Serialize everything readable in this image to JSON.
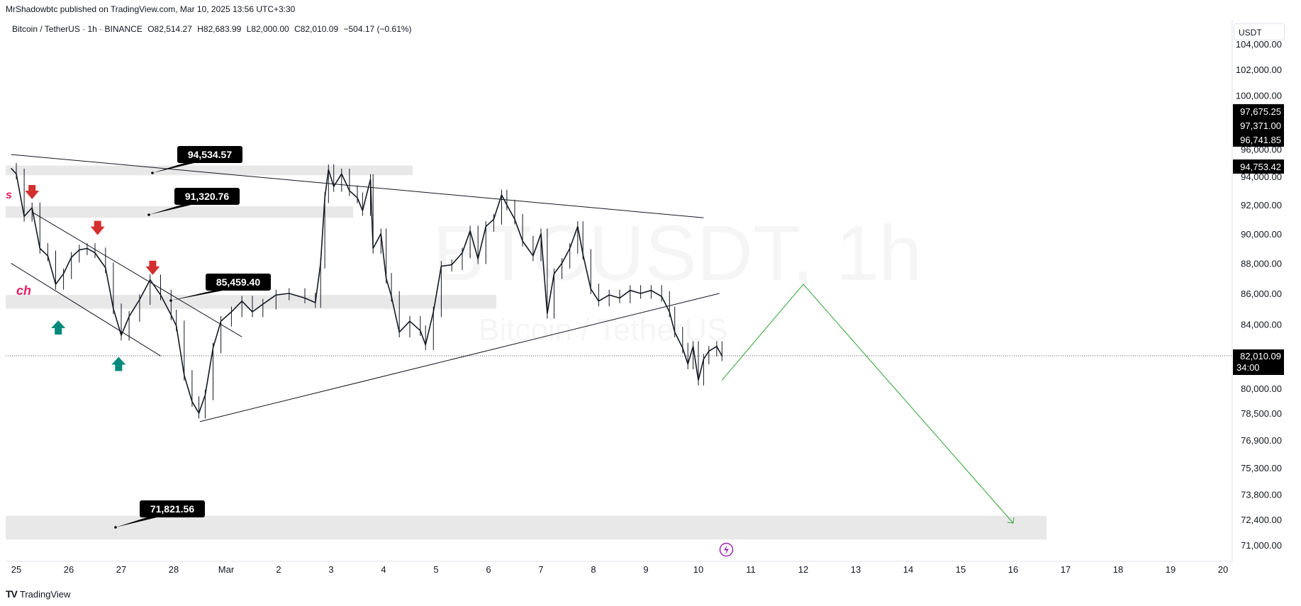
{
  "header": {
    "published_by": "MrShadowbtc published on TradingView.com, Mar 10, 2025 13:56 UTC+3:30"
  },
  "symbol": {
    "name": "Bitcoin / TetherUS · 1h · BINANCE",
    "open": "O82,514.27",
    "high": "H82,683.99",
    "low": "L82,000.00",
    "close": "C82,010.09",
    "change": "−504.17 (−0.61%)"
  },
  "watermark": {
    "main": "BTCUSDT, 1h",
    "sub": "Bitcoin / TetherUS"
  },
  "axis": {
    "currency": "USDT"
  },
  "footer": {
    "logo_mark": "TV",
    "logo_text": "TradingView"
  },
  "chart_data": {
    "type": "line",
    "price_axis": {
      "tick_labels": [
        "104,000.00",
        "102,000.00",
        "100,000.00",
        "96,000.00",
        "94,000.00",
        "92,000.00",
        "90,000.00",
        "88,000.00",
        "86,000.00",
        "84,000.00",
        "80,000.00",
        "78,500.00",
        "76,900.00",
        "75,300.00",
        "73,800.00",
        "72,400.00",
        "71,000.00"
      ],
      "scale": "log"
    },
    "time_axis": {
      "tick_labels": [
        "25",
        "26",
        "27",
        "28",
        "Mar",
        "2",
        "3",
        "4",
        "5",
        "6",
        "7",
        "8",
        "9",
        "10",
        "11",
        "12",
        "13",
        "14",
        "15",
        "16",
        "17",
        "18",
        "19",
        "20"
      ]
    },
    "price_badges": [
      {
        "label": "97,675.25",
        "value": 97675.25
      },
      {
        "label": "97,371.00",
        "value": 97371.0
      },
      {
        "label": "96,741.85",
        "value": 96741.85
      },
      {
        "label": "94,753.42",
        "value": 94753.42
      }
    ],
    "current_price": {
      "label": "82,010.09",
      "countdown": "34:00",
      "value": 82010.09
    },
    "callouts": [
      {
        "label": "94,534.57",
        "value": 94534.57
      },
      {
        "label": "91,320.76",
        "value": 91320.76
      },
      {
        "label": "85,459.40",
        "value": 85459.4
      },
      {
        "label": "71,821.56",
        "value": 71821.56
      }
    ],
    "zones": [
      {
        "from": 94100,
        "to": 94800
      },
      {
        "from": 91100,
        "to": 91900
      },
      {
        "from": 85000,
        "to": 85900
      },
      {
        "from": 71300,
        "to": 72600
      }
    ],
    "price_series": [
      {
        "day": 24.9,
        "price": 94600
      },
      {
        "day": 25.0,
        "price": 94200
      },
      {
        "day": 25.15,
        "price": 91200
      },
      {
        "day": 25.3,
        "price": 91800
      },
      {
        "day": 25.45,
        "price": 89000
      },
      {
        "day": 25.6,
        "price": 88500
      },
      {
        "day": 25.75,
        "price": 86600
      },
      {
        "day": 25.9,
        "price": 87300
      },
      {
        "day": 26.05,
        "price": 88400
      },
      {
        "day": 26.2,
        "price": 88900
      },
      {
        "day": 26.35,
        "price": 89000
      },
      {
        "day": 26.5,
        "price": 88700
      },
      {
        "day": 26.7,
        "price": 87700
      },
      {
        "day": 26.85,
        "price": 85000
      },
      {
        "day": 27.0,
        "price": 83300
      },
      {
        "day": 27.15,
        "price": 84500
      },
      {
        "day": 27.35,
        "price": 85600
      },
      {
        "day": 27.55,
        "price": 86900
      },
      {
        "day": 27.75,
        "price": 85900
      },
      {
        "day": 27.95,
        "price": 84600
      },
      {
        "day": 28.05,
        "price": 83900
      },
      {
        "day": 28.2,
        "price": 80800
      },
      {
        "day": 28.35,
        "price": 79200
      },
      {
        "day": 28.48,
        "price": 78500
      },
      {
        "day": 28.6,
        "price": 79600
      },
      {
        "day": 28.75,
        "price": 82500
      },
      {
        "day": 28.9,
        "price": 84200
      },
      {
        "day": 29.1,
        "price": 84800
      },
      {
        "day": 29.3,
        "price": 85500
      },
      {
        "day": 29.5,
        "price": 84800
      },
      {
        "day": 29.7,
        "price": 85300
      },
      {
        "day": 29.95,
        "price": 85900
      },
      {
        "day": 30.2,
        "price": 86000
      },
      {
        "day": 30.5,
        "price": 85700
      },
      {
        "day": 30.7,
        "price": 85400
      },
      {
        "day": 30.8,
        "price": 88000
      },
      {
        "day": 30.88,
        "price": 92500
      },
      {
        "day": 30.95,
        "price": 94500
      },
      {
        "day": 31.05,
        "price": 93300
      },
      {
        "day": 31.2,
        "price": 94200
      },
      {
        "day": 31.35,
        "price": 93000
      },
      {
        "day": 31.5,
        "price": 92500
      },
      {
        "day": 31.6,
        "price": 91600
      },
      {
        "day": 31.75,
        "price": 93800
      },
      {
        "day": 31.8,
        "price": 89000
      },
      {
        "day": 31.95,
        "price": 90000
      },
      {
        "day": 32.05,
        "price": 87000
      },
      {
        "day": 32.15,
        "price": 85800
      },
      {
        "day": 32.3,
        "price": 83500
      },
      {
        "day": 32.5,
        "price": 84200
      },
      {
        "day": 32.7,
        "price": 83600
      },
      {
        "day": 32.8,
        "price": 82700
      },
      {
        "day": 32.95,
        "price": 84800
      },
      {
        "day": 33.1,
        "price": 87800
      },
      {
        "day": 33.3,
        "price": 87900
      },
      {
        "day": 33.5,
        "price": 88700
      },
      {
        "day": 33.65,
        "price": 90200
      },
      {
        "day": 33.8,
        "price": 88300
      },
      {
        "day": 33.95,
        "price": 90500
      },
      {
        "day": 34.1,
        "price": 91000
      },
      {
        "day": 34.25,
        "price": 92700
      },
      {
        "day": 34.35,
        "price": 92000
      },
      {
        "day": 34.5,
        "price": 91000
      },
      {
        "day": 34.65,
        "price": 89500
      },
      {
        "day": 34.85,
        "price": 88500
      },
      {
        "day": 35.0,
        "price": 90000
      },
      {
        "day": 35.12,
        "price": 84700
      },
      {
        "day": 35.25,
        "price": 87300
      },
      {
        "day": 35.4,
        "price": 88000
      },
      {
        "day": 35.55,
        "price": 89000
      },
      {
        "day": 35.7,
        "price": 90500
      },
      {
        "day": 35.8,
        "price": 88600
      },
      {
        "day": 35.95,
        "price": 86300
      },
      {
        "day": 36.1,
        "price": 85500
      },
      {
        "day": 36.3,
        "price": 85900
      },
      {
        "day": 36.5,
        "price": 85700
      },
      {
        "day": 36.7,
        "price": 86200
      },
      {
        "day": 36.9,
        "price": 86000
      },
      {
        "day": 37.1,
        "price": 86200
      },
      {
        "day": 37.3,
        "price": 85800
      },
      {
        "day": 37.45,
        "price": 84800
      },
      {
        "day": 37.55,
        "price": 83500
      },
      {
        "day": 37.7,
        "price": 82500
      },
      {
        "day": 37.8,
        "price": 81500
      },
      {
        "day": 37.9,
        "price": 82600
      },
      {
        "day": 38.0,
        "price": 80500
      },
      {
        "day": 38.1,
        "price": 81800
      },
      {
        "day": 38.2,
        "price": 82300
      },
      {
        "day": 38.35,
        "price": 82600
      },
      {
        "day": 38.45,
        "price": 82010
      }
    ],
    "trendlines": [
      {
        "name": "upper",
        "points": [
          {
            "day": 24.9,
            "price": 95600
          },
          {
            "day": 38.1,
            "price": 91100
          }
        ]
      },
      {
        "name": "lower",
        "points": [
          {
            "day": 28.5,
            "price": 78000
          },
          {
            "day": 38.4,
            "price": 86000
          }
        ]
      },
      {
        "name": "channel-top",
        "points": [
          {
            "day": 25.3,
            "price": 91500
          },
          {
            "day": 29.3,
            "price": 83200
          }
        ]
      },
      {
        "name": "channel-bottom",
        "points": [
          {
            "day": 24.9,
            "price": 88000
          },
          {
            "day": 27.75,
            "price": 82000
          }
        ]
      }
    ],
    "projection": [
      {
        "day": 38.45,
        "price": 80500
      },
      {
        "day": 40.0,
        "price": 86600
      },
      {
        "day": 44.0,
        "price": 72200
      }
    ],
    "markers": [
      {
        "type": "down-arrow",
        "day": 25.3,
        "price": 92800
      },
      {
        "type": "down-arrow",
        "day": 26.55,
        "price": 90300
      },
      {
        "type": "down-arrow",
        "day": 27.6,
        "price": 87600
      },
      {
        "type": "up-arrow",
        "day": 25.8,
        "price": 83800
      },
      {
        "type": "up-arrow",
        "day": 26.95,
        "price": 81500
      }
    ],
    "text_fragments": [
      "s",
      "ch"
    ],
    "grid": false
  }
}
